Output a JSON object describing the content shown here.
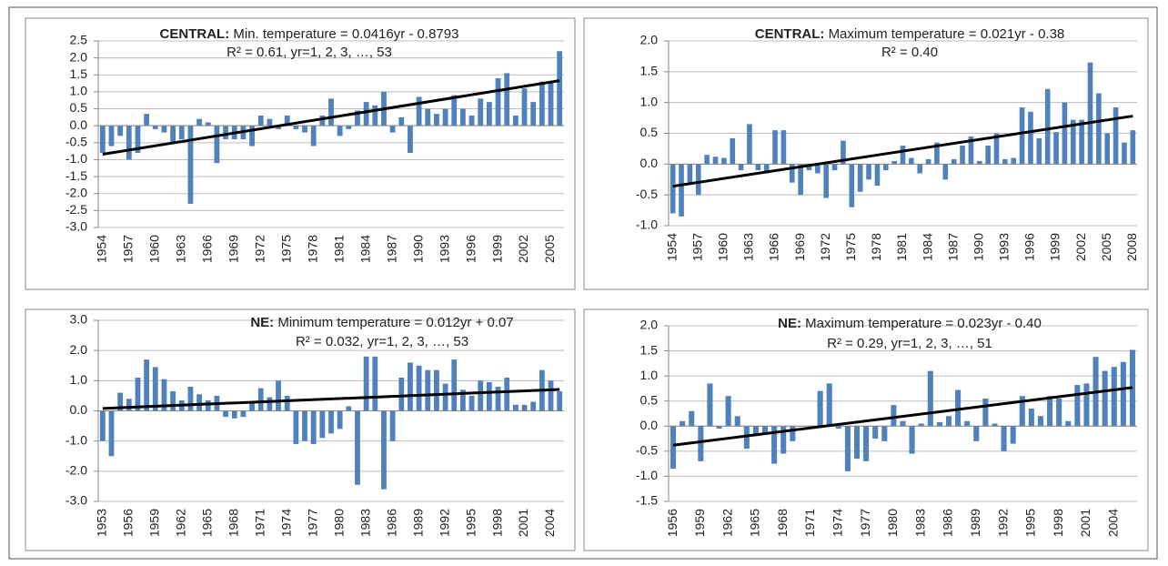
{
  "chart_data": [
    {
      "type": "bar",
      "title_region": "CENTRAL:",
      "title": "Min. temperature = 0.0416yr - 0.8793",
      "subtitle": "R² = 0.61, yr=1, 2, 3, …, 53",
      "color": "#4f81bd",
      "trend_color": "#000000",
      "categories": [
        "1954",
        null,
        null,
        "1957",
        null,
        null,
        "1960",
        null,
        null,
        "1963",
        null,
        null,
        "1966",
        null,
        null,
        "1969",
        null,
        null,
        "1972",
        null,
        null,
        "1975",
        null,
        null,
        "1978",
        null,
        null,
        "1981",
        null,
        null,
        "1984",
        null,
        null,
        "1987",
        null,
        null,
        "1990",
        null,
        null,
        "1993",
        null,
        null,
        "1996",
        null,
        null,
        "1999",
        null,
        null,
        "2002",
        null,
        null,
        "2005",
        null
      ],
      "values": [
        -0.8,
        -0.6,
        -0.3,
        -1.0,
        -0.8,
        0.35,
        -0.1,
        -0.2,
        -0.5,
        -0.4,
        -2.3,
        0.2,
        0.1,
        -1.1,
        -0.4,
        -0.4,
        -0.4,
        -0.6,
        0.3,
        0.2,
        -0.1,
        0.3,
        -0.1,
        -0.2,
        -0.6,
        0.3,
        0.8,
        -0.3,
        -0.1,
        0.45,
        0.7,
        0.6,
        1.0,
        -0.2,
        0.25,
        -0.8,
        0.85,
        0.5,
        0.35,
        0.5,
        0.9,
        0.5,
        0.3,
        0.8,
        0.7,
        1.4,
        1.55,
        0.3,
        1.1,
        0.7,
        1.3,
        1.3,
        2.2
      ],
      "trend": [
        -0.84,
        1.33
      ],
      "ylim": [
        -3.0,
        2.5
      ],
      "yticks": [
        2.5,
        {
          "value": 2,
          "label": "2.0"
        },
        1.5,
        {
          "value": 1,
          "label": "1.0"
        },
        0.5,
        {
          "value": 0,
          "label": "0.0"
        },
        -0.5,
        {
          "value": -1,
          "label": "-1.0"
        },
        -1.5,
        {
          "value": -2,
          "label": "-2.0"
        },
        -2.5,
        {
          "value": -3,
          "label": "-3.0"
        }
      ],
      "grid": true
    },
    {
      "type": "bar",
      "title_region": "CENTRAL:",
      "title": "Maximum temperature = 0.021yr - 0.38",
      "subtitle": "R² = 0.40",
      "color": "#4f81bd",
      "trend_color": "#000000",
      "categories": [
        "1954",
        null,
        null,
        "1957",
        null,
        null,
        "1960",
        null,
        null,
        "1963",
        null,
        null,
        "1966",
        null,
        null,
        "1969",
        null,
        null,
        "1972",
        null,
        null,
        "1975",
        null,
        null,
        "1978",
        null,
        null,
        "1981",
        null,
        null,
        "1984",
        null,
        null,
        "1987",
        null,
        null,
        "1990",
        null,
        null,
        "1993",
        null,
        null,
        "1996",
        null,
        null,
        "1999",
        null,
        null,
        "2002",
        null,
        null,
        "2005",
        null,
        null,
        "2008"
      ],
      "values": [
        -0.8,
        -0.85,
        -0.3,
        -0.5,
        0.15,
        0.12,
        0.1,
        0.42,
        -0.1,
        0.65,
        -0.1,
        -0.15,
        0.55,
        0.55,
        -0.3,
        -0.5,
        -0.1,
        -0.15,
        -0.55,
        -0.1,
        0.38,
        -0.7,
        -0.45,
        -0.25,
        -0.35,
        -0.1,
        0.05,
        0.3,
        0.1,
        -0.15,
        0.08,
        0.35,
        -0.25,
        0.08,
        0.3,
        0.45,
        0.05,
        0.3,
        0.5,
        0.08,
        0.1,
        0.92,
        0.85,
        0.42,
        1.22,
        0.52,
        1.0,
        0.72,
        0.72,
        1.65,
        1.15,
        0.5,
        0.92,
        0.35,
        0.55
      ],
      "trend": [
        -0.36,
        0.78
      ],
      "ylim": [
        -1.0,
        2.0
      ],
      "yticks": [
        {
          "value": 2,
          "label": "2.0"
        },
        1.5,
        {
          "value": 1,
          "label": "1.0"
        },
        0.5,
        {
          "value": 0,
          "label": "0.0"
        },
        -0.5,
        {
          "value": -1,
          "label": "-1.0"
        }
      ],
      "grid": true
    },
    {
      "type": "bar",
      "title_region": "NE:",
      "title": "Minimum temperature = 0.012yr + 0.07",
      "subtitle": "R² = 0.032, yr=1, 2, 3, …, 53",
      "color": "#4f81bd",
      "trend_color": "#000000",
      "categories": [
        "1953",
        null,
        null,
        "1956",
        null,
        null,
        "1959",
        null,
        null,
        "1962",
        null,
        null,
        "1965",
        null,
        null,
        "1968",
        null,
        null,
        "1971",
        null,
        null,
        "1974",
        null,
        null,
        "1977",
        null,
        null,
        "1980",
        null,
        null,
        "1983",
        null,
        null,
        "1986",
        null,
        null,
        "1989",
        null,
        null,
        "1992",
        null,
        null,
        "1995",
        null,
        null,
        "1998",
        null,
        null,
        "2001",
        null,
        null,
        "2004",
        null
      ],
      "values": [
        -1.0,
        -1.5,
        0.6,
        0.4,
        1.1,
        1.7,
        1.45,
        1.05,
        0.65,
        0.35,
        0.8,
        0.55,
        0.35,
        0.5,
        -0.2,
        -0.25,
        -0.2,
        0.3,
        0.75,
        0.45,
        1.0,
        0.5,
        -1.1,
        -1.0,
        -1.1,
        -0.9,
        -0.75,
        -0.6,
        0.15,
        -2.45,
        1.8,
        1.8,
        -2.6,
        -1.0,
        1.1,
        1.6,
        1.5,
        1.35,
        1.35,
        0.9,
        1.7,
        0.7,
        0.5,
        1.0,
        0.95,
        0.8,
        1.1,
        0.2,
        0.2,
        0.3,
        1.35,
        1.0,
        0.65
      ],
      "trend": [
        0.08,
        0.71
      ],
      "ylim": [
        -3.0,
        3.0
      ],
      "yticks": [
        {
          "value": 3,
          "label": "3.0"
        },
        {
          "value": 2,
          "label": "2.0"
        },
        {
          "value": 1,
          "label": "1.0"
        },
        {
          "value": 0,
          "label": "0.0"
        },
        {
          "value": -1,
          "label": "-1.0"
        },
        {
          "value": -2,
          "label": "-2.0"
        },
        {
          "value": -3,
          "label": "-3.0"
        }
      ],
      "grid": true
    },
    {
      "type": "bar",
      "title_region": "NE:",
      "title": "Maximum temperature = 0.023yr - 0.40",
      "subtitle": "R² = 0.29, yr=1, 2, 3, …, 51",
      "color": "#4f81bd",
      "trend_color": "#000000",
      "categories": [
        "1956",
        null,
        null,
        "1959",
        null,
        null,
        "1962",
        null,
        null,
        "1965",
        null,
        null,
        "1968",
        null,
        null,
        "1971",
        null,
        null,
        "1974",
        null,
        null,
        "1977",
        null,
        null,
        "1980",
        null,
        null,
        "1983",
        null,
        null,
        "1986",
        null,
        null,
        "1989",
        null,
        null,
        "1992",
        null,
        null,
        "1995",
        null,
        null,
        "1998",
        null,
        null,
        "2001",
        null,
        null,
        "2004",
        null,
        null
      ],
      "values": [
        -0.85,
        0.1,
        0.3,
        -0.7,
        0.85,
        -0.05,
        0.6,
        0.2,
        -0.45,
        -0.2,
        -0.15,
        -0.75,
        -0.55,
        -0.3,
        0.0,
        -0.05,
        0.7,
        0.85,
        -0.05,
        -0.9,
        -0.65,
        -0.7,
        -0.25,
        -0.3,
        0.42,
        0.1,
        -0.55,
        0.05,
        1.1,
        0.08,
        0.2,
        0.72,
        0.1,
        -0.3,
        0.55,
        0.05,
        -0.5,
        -0.35,
        0.6,
        0.35,
        0.2,
        0.6,
        0.55,
        0.1,
        0.82,
        0.85,
        1.38,
        1.1,
        1.18,
        1.28,
        1.52
      ],
      "trend": [
        -0.38,
        0.77
      ],
      "ylim": [
        -1.5,
        2.0
      ],
      "yticks": [
        {
          "value": 2,
          "label": "2.0"
        },
        1.5,
        {
          "value": 1,
          "label": "1.0"
        },
        0.5,
        {
          "value": 0,
          "label": "0.0"
        },
        -0.5,
        {
          "value": -1,
          "label": "-1.0"
        },
        -1.5
      ],
      "grid": true
    }
  ]
}
